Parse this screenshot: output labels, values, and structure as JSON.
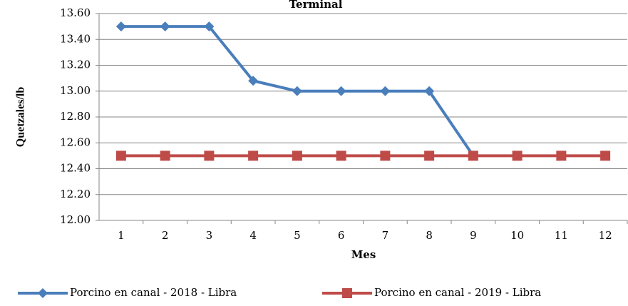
{
  "chart_data": {
    "type": "line",
    "title": "Terminal",
    "x_label": "Mes",
    "y_label": "Quetzales/lb",
    "categories": [
      "1",
      "2",
      "3",
      "4",
      "5",
      "6",
      "7",
      "8",
      "9",
      "10",
      "11",
      "12"
    ],
    "series": [
      {
        "name": "Porcino en canal - 2018 - Libra",
        "color": "#4a7ebb",
        "marker": "diamond",
        "values": [
          13.5,
          13.5,
          13.5,
          13.08,
          13.0,
          13.0,
          13.0,
          13.0,
          12.5,
          null,
          null,
          null
        ]
      },
      {
        "name": "Porcino en canal - 2019 - Libra",
        "color": "#be4b48",
        "marker": "square",
        "values": [
          12.5,
          12.5,
          12.5,
          12.5,
          12.5,
          12.5,
          12.5,
          12.5,
          12.5,
          12.5,
          12.5,
          12.5
        ]
      }
    ],
    "ylim": [
      12.0,
      13.6
    ],
    "yticks": [
      {
        "value": 12.0,
        "label": "12.00"
      },
      {
        "value": 12.2,
        "label": "12.20"
      },
      {
        "value": 12.4,
        "label": "12.40"
      },
      {
        "value": 12.6,
        "label": "12.60"
      },
      {
        "value": 12.8,
        "label": "12.80"
      },
      {
        "value": 13.0,
        "label": "13.00"
      },
      {
        "value": 13.2,
        "label": "13.20"
      },
      {
        "value": 13.4,
        "label": "13.40"
      },
      {
        "value": 13.6,
        "label": "13.60"
      }
    ],
    "grid": true,
    "legend": "bottom"
  }
}
